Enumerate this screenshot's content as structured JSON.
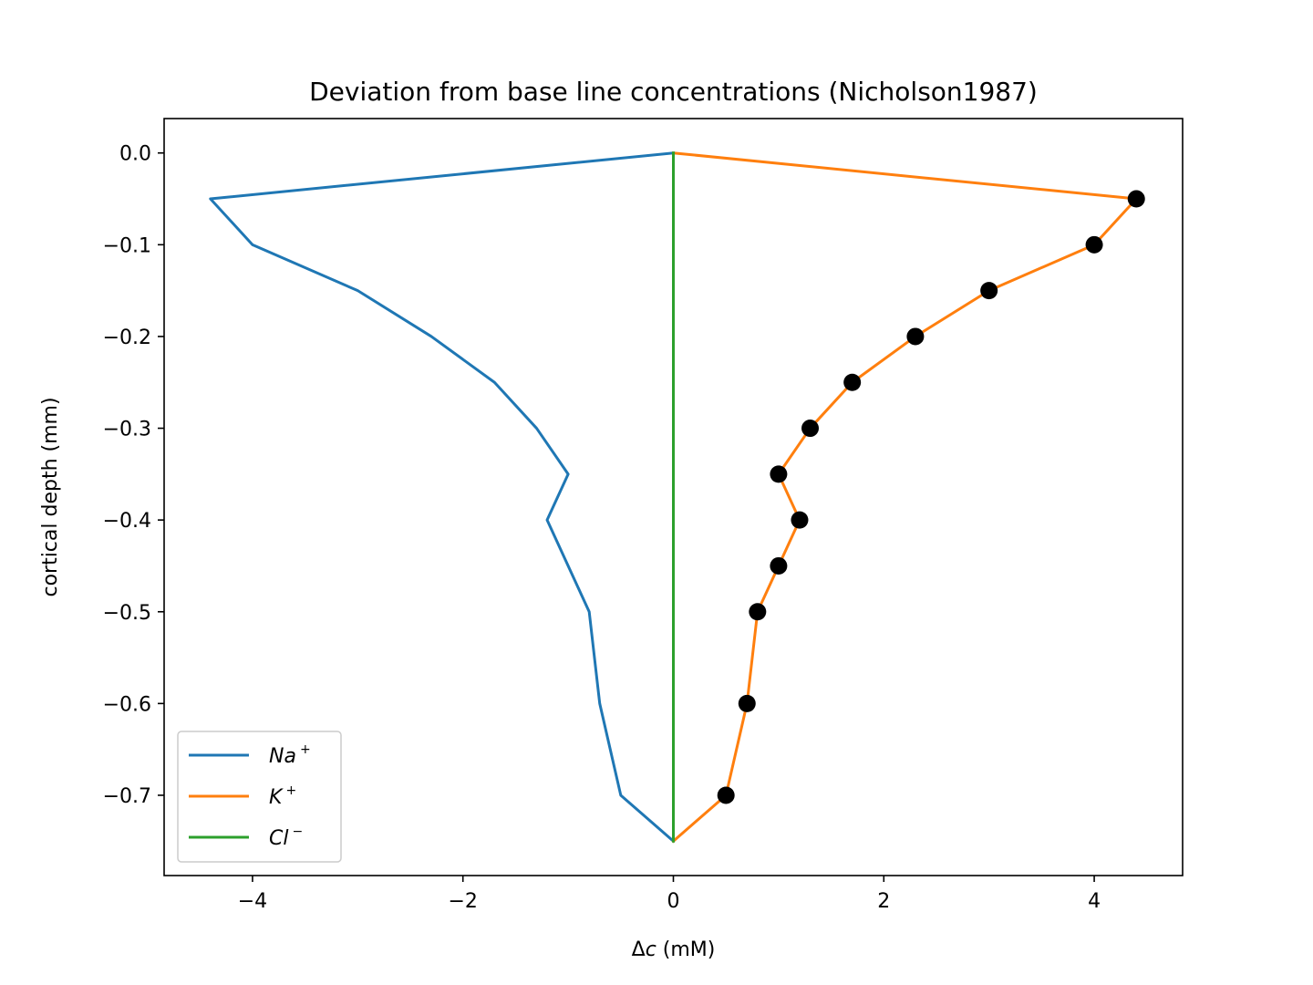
{
  "chart_data": {
    "type": "line",
    "title": "Deviation from base line concentrations (Nicholson1987)",
    "xlabel_prefix": "Δ",
    "xlabel_var": "c",
    "xlabel_suffix": " (mM)",
    "ylabel": "cortical depth (mm)",
    "xlim": [
      -4.84,
      4.84
    ],
    "ylim": [
      -0.7875,
      0.0375
    ],
    "xticks": [
      -4,
      -2,
      0,
      2,
      4
    ],
    "xtick_labels": [
      "−4",
      "−2",
      "0",
      "2",
      "4"
    ],
    "yticks": [
      0.0,
      -0.1,
      -0.2,
      -0.3,
      -0.4,
      -0.5,
      -0.6,
      -0.7
    ],
    "ytick_labels": [
      "0.0",
      "−0.1",
      "−0.2",
      "−0.3",
      "−0.4",
      "−0.5",
      "−0.6",
      "−0.7"
    ],
    "grid": false,
    "legend_position": "lower-left",
    "series": [
      {
        "name": "Na",
        "name_sup": "+",
        "color": "#1f77b4",
        "x": [
          0,
          -4.4,
          -4.0,
          -3.0,
          -2.3,
          -1.7,
          -1.3,
          -1.0,
          -1.2,
          -0.8,
          -0.7,
          -0.5,
          0
        ],
        "y": [
          0.0,
          -0.05,
          -0.1,
          -0.15,
          -0.2,
          -0.25,
          -0.3,
          -0.35,
          -0.4,
          -0.5,
          -0.6,
          -0.7,
          -0.75
        ]
      },
      {
        "name": "K",
        "name_sup": "+",
        "color": "#ff7f0e",
        "x": [
          0,
          4.4,
          4.0,
          3.0,
          2.3,
          1.7,
          1.3,
          1.0,
          1.2,
          1.0,
          0.8,
          0.7,
          0.5,
          0
        ],
        "y": [
          0.0,
          -0.05,
          -0.1,
          -0.15,
          -0.2,
          -0.25,
          -0.3,
          -0.35,
          -0.4,
          -0.45,
          -0.5,
          -0.6,
          -0.7,
          -0.75
        ]
      },
      {
        "name": "Cl",
        "name_sup": "−",
        "color": "#2ca02c",
        "x": [
          0,
          0
        ],
        "y": [
          0.0,
          -0.75
        ]
      }
    ],
    "markers": {
      "color": "#000000",
      "x": [
        4.4,
        4.0,
        3.0,
        2.3,
        1.7,
        1.3,
        1.0,
        1.2,
        1.0,
        0.8,
        0.7,
        0.5
      ],
      "y": [
        -0.05,
        -0.1,
        -0.15,
        -0.2,
        -0.25,
        -0.3,
        -0.35,
        -0.4,
        -0.45,
        -0.5,
        -0.6,
        -0.7
      ]
    }
  }
}
